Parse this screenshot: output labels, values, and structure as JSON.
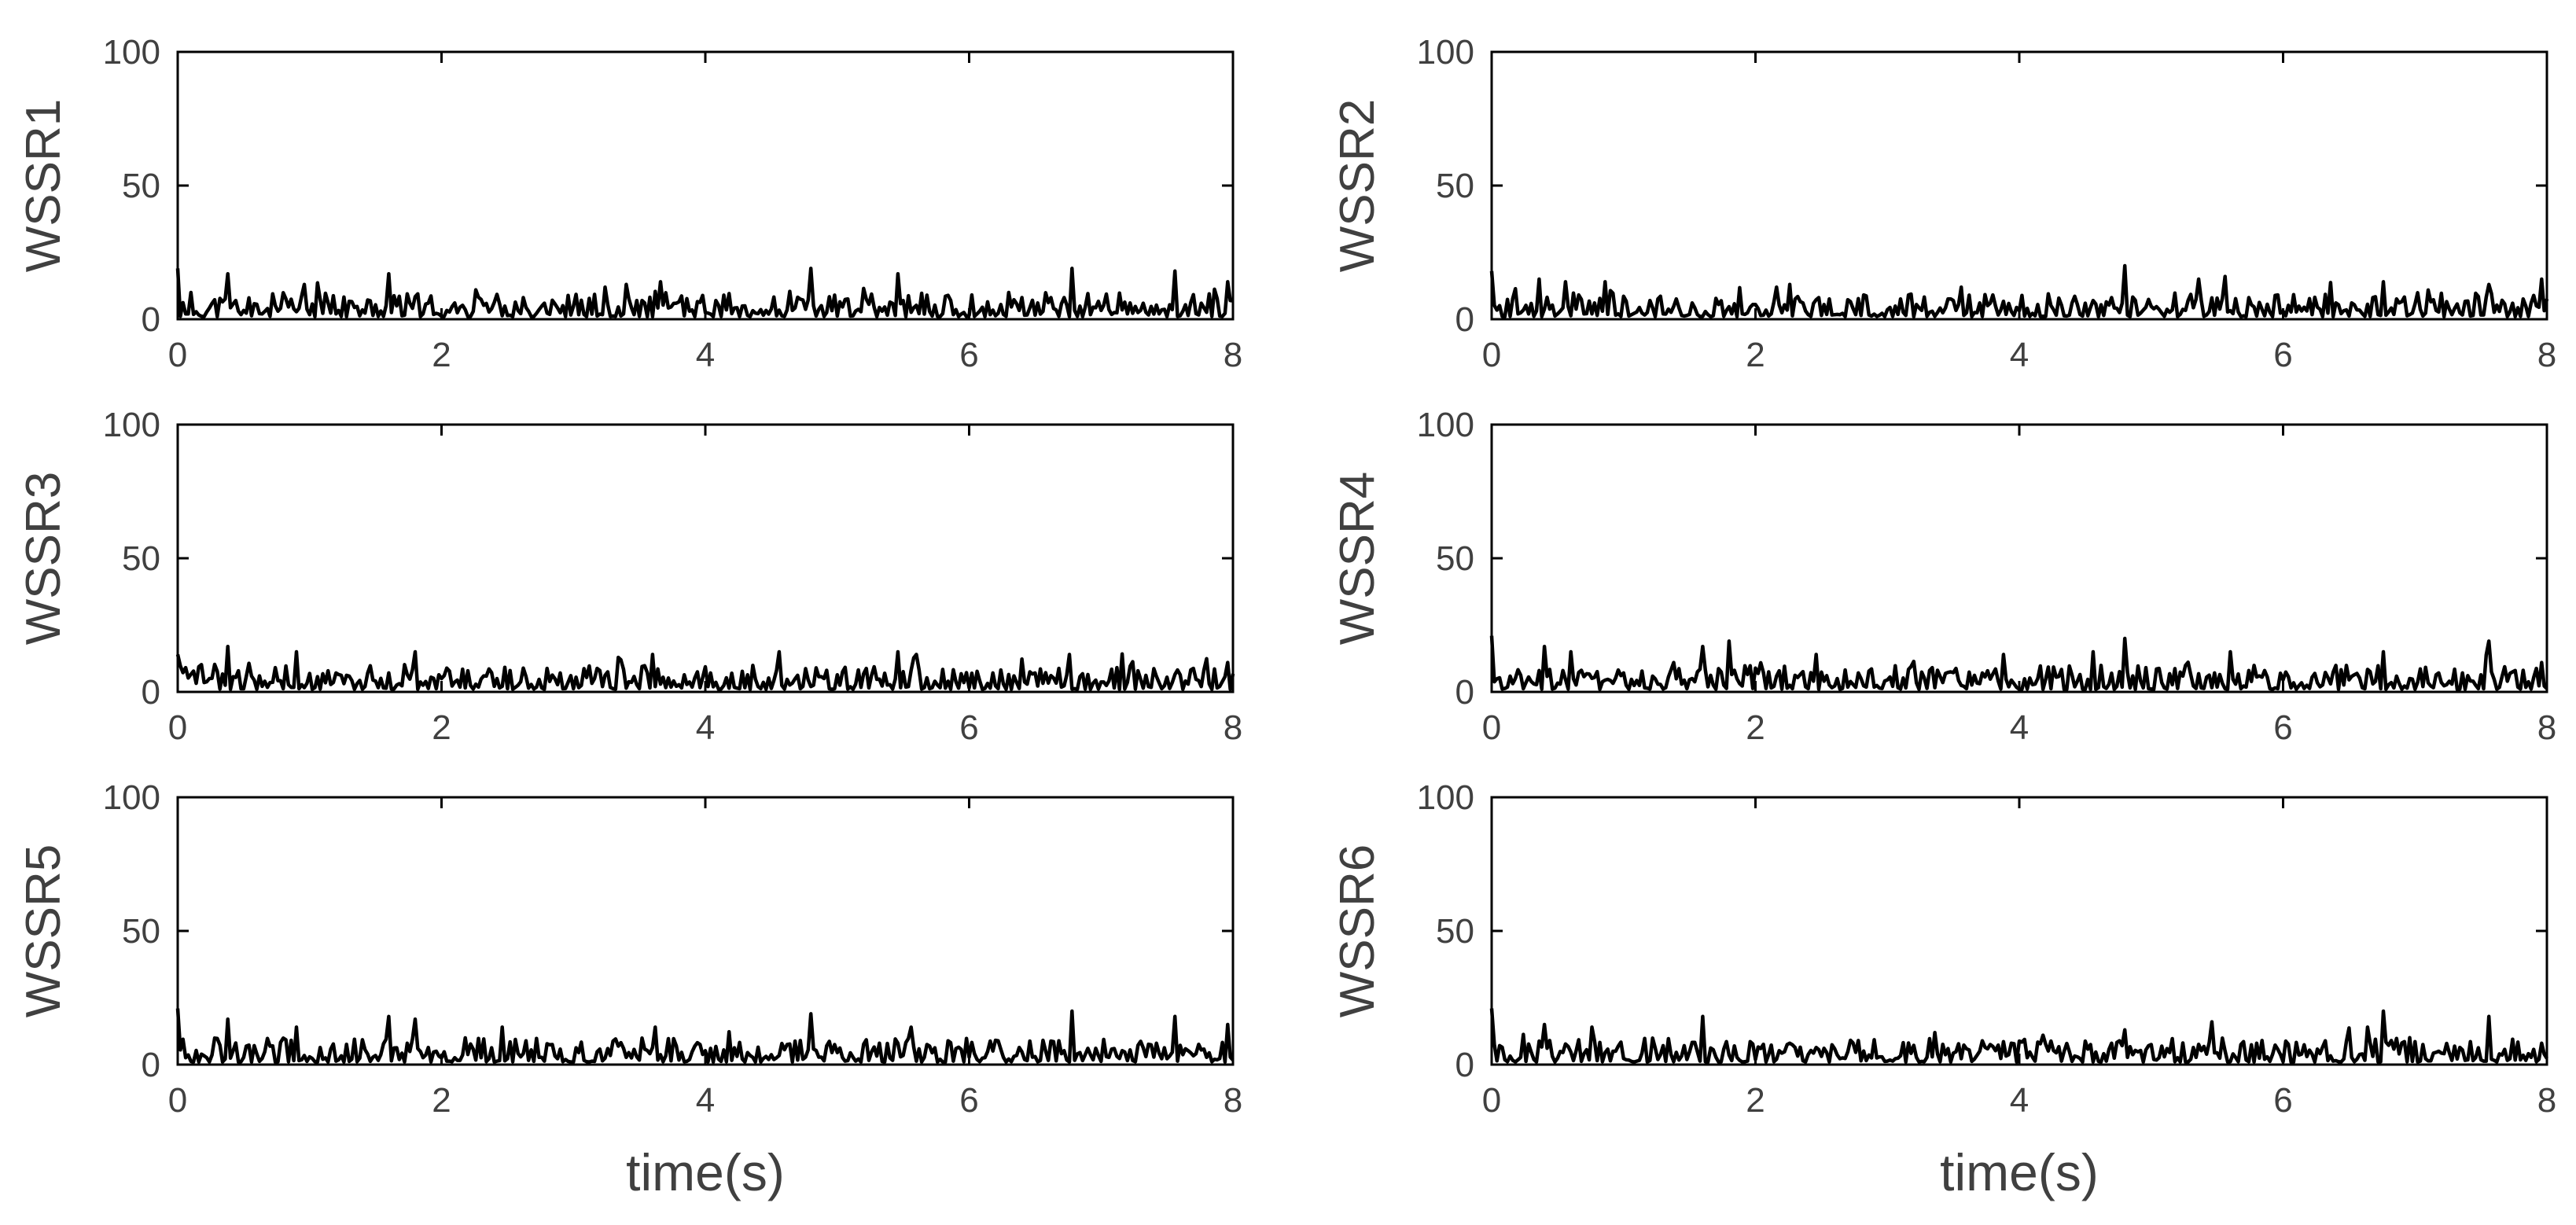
{
  "chart_data": [
    {
      "type": "line",
      "ylabel": "WSSR1",
      "xlabel": "",
      "xlim": [
        0,
        8
      ],
      "ylim": [
        0,
        100
      ],
      "xticks": [
        "0",
        "2",
        "4",
        "6",
        "8"
      ],
      "yticks": [
        "0",
        "50",
        "100"
      ],
      "x_step": 0.02,
      "series": [
        {
          "name": "WSSR1",
          "values": []
        }
      ],
      "peaks": [
        [
          0.0,
          19
        ],
        [
          0.38,
          17
        ],
        [
          0.95,
          13
        ],
        [
          1.6,
          17
        ],
        [
          2.25,
          11
        ],
        [
          3.4,
          13
        ],
        [
          3.65,
          14
        ],
        [
          4.8,
          19
        ],
        [
          5.45,
          17
        ],
        [
          6.78,
          19
        ],
        [
          7.55,
          18
        ],
        [
          7.95,
          14
        ]
      ],
      "seed": 11
    },
    {
      "type": "line",
      "ylabel": "WSSR2",
      "xlabel": "",
      "xlim": [
        0,
        8
      ],
      "ylim": [
        0,
        100
      ],
      "xticks": [
        "0",
        "2",
        "4",
        "6",
        "8"
      ],
      "yticks": [
        "0",
        "50",
        "100"
      ],
      "x_step": 0.02,
      "series": [
        {
          "name": "WSSR2",
          "values": []
        }
      ],
      "peaks": [
        [
          0.0,
          18
        ],
        [
          0.35,
          15
        ],
        [
          0.55,
          14
        ],
        [
          0.85,
          14
        ],
        [
          2.15,
          12
        ],
        [
          3.55,
          12
        ],
        [
          4.8,
          20
        ],
        [
          5.35,
          15
        ],
        [
          5.55,
          16
        ],
        [
          6.75,
          14
        ],
        [
          7.55,
          13
        ],
        [
          7.95,
          15
        ]
      ],
      "seed": 23
    },
    {
      "type": "line",
      "ylabel": "WSSR3",
      "xlabel": "",
      "xlim": [
        0,
        8
      ],
      "ylim": [
        0,
        100
      ],
      "xticks": [
        "0",
        "2",
        "4",
        "6",
        "8"
      ],
      "yticks": [
        "0",
        "50",
        "100"
      ],
      "x_step": 0.02,
      "series": [
        {
          "name": "WSSR3",
          "values": []
        }
      ],
      "peaks": [
        [
          0.0,
          14
        ],
        [
          0.38,
          17
        ],
        [
          0.9,
          15
        ],
        [
          1.8,
          15
        ],
        [
          3.35,
          12
        ],
        [
          3.6,
          14
        ],
        [
          4.55,
          15
        ],
        [
          5.45,
          15
        ],
        [
          5.6,
          14
        ],
        [
          6.75,
          14
        ],
        [
          7.95,
          11
        ]
      ],
      "seed": 37
    },
    {
      "type": "line",
      "ylabel": "WSSR4",
      "xlabel": "",
      "xlim": [
        0,
        8
      ],
      "ylim": [
        0,
        100
      ],
      "xticks": [
        "0",
        "2",
        "4",
        "6",
        "8"
      ],
      "yticks": [
        "0",
        "50",
        "100"
      ],
      "x_step": 0.02,
      "series": [
        {
          "name": "WSSR4",
          "values": []
        }
      ],
      "peaks": [
        [
          0.0,
          21
        ],
        [
          0.4,
          17
        ],
        [
          0.6,
          15
        ],
        [
          1.6,
          17
        ],
        [
          1.8,
          19
        ],
        [
          2.45,
          14
        ],
        [
          4.55,
          15
        ],
        [
          4.8,
          20
        ],
        [
          5.6,
          15
        ],
        [
          6.75,
          15
        ],
        [
          7.55,
          19
        ],
        [
          7.95,
          11
        ]
      ],
      "seed": 41
    },
    {
      "type": "line",
      "ylabel": "WSSR5",
      "xlabel": "time(s)",
      "xlim": [
        0,
        8
      ],
      "ylim": [
        0,
        100
      ],
      "xticks": [
        "0",
        "2",
        "4",
        "6",
        "8"
      ],
      "yticks": [
        "0",
        "50",
        "100"
      ],
      "x_step": 0.02,
      "series": [
        {
          "name": "WSSR5",
          "values": []
        }
      ],
      "peaks": [
        [
          0.0,
          21
        ],
        [
          0.38,
          17
        ],
        [
          0.9,
          14
        ],
        [
          1.6,
          18
        ],
        [
          1.8,
          17
        ],
        [
          2.45,
          14
        ],
        [
          4.8,
          19
        ],
        [
          5.55,
          14
        ],
        [
          6.78,
          20
        ],
        [
          7.55,
          18
        ],
        [
          7.95,
          15
        ]
      ],
      "seed": 53
    },
    {
      "type": "line",
      "ylabel": "WSSR6",
      "xlabel": "time(s)",
      "xlim": [
        0,
        8
      ],
      "ylim": [
        0,
        100
      ],
      "xticks": [
        "0",
        "2",
        "4",
        "6",
        "8"
      ],
      "yticks": [
        "0",
        "50",
        "100"
      ],
      "x_step": 0.02,
      "series": [
        {
          "name": "WSSR6",
          "values": []
        }
      ],
      "peaks": [
        [
          0.0,
          21
        ],
        [
          0.4,
          15
        ],
        [
          0.75,
          14
        ],
        [
          1.6,
          18
        ],
        [
          3.35,
          12
        ],
        [
          4.8,
          13
        ],
        [
          5.45,
          16
        ],
        [
          6.75,
          20
        ],
        [
          7.55,
          18
        ],
        [
          7.95,
          8
        ]
      ],
      "seed": 67
    }
  ]
}
